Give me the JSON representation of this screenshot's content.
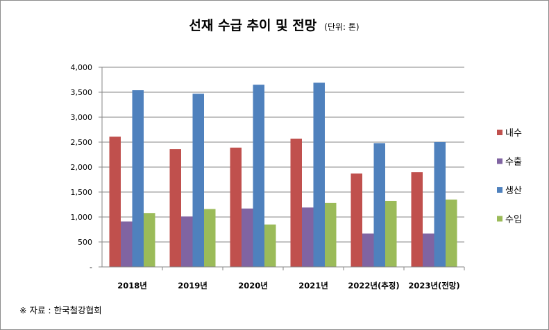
{
  "chart_data": {
    "type": "bar",
    "title": "선재 수급 추이 및 전망",
    "subtitle": "(단위: 톤)",
    "categories": [
      "2018년",
      "2019년",
      "2020년",
      "2021년",
      "2022년(추정)",
      "2023년(전망)"
    ],
    "series": [
      {
        "name": "내수",
        "color": "#c0504d",
        "values": [
          2610,
          2360,
          2390,
          2570,
          1870,
          1900
        ]
      },
      {
        "name": "수출",
        "color": "#8064a2",
        "values": [
          910,
          1010,
          1170,
          1190,
          670,
          670
        ]
      },
      {
        "name": "생산",
        "color": "#4f81bd",
        "values": [
          3540,
          3470,
          3650,
          3690,
          2480,
          2500
        ]
      },
      {
        "name": "수입",
        "color": "#9bbb59",
        "values": [
          1080,
          1160,
          850,
          1280,
          1320,
          1350
        ]
      }
    ],
    "ylim": [
      0,
      4000
    ],
    "yticks": [
      {
        "value": 0,
        "label": "-"
      },
      {
        "value": 500,
        "label": "500"
      },
      {
        "value": 1000,
        "label": "1,000"
      },
      {
        "value": 1500,
        "label": "1,500"
      },
      {
        "value": 2000,
        "label": "2,000"
      },
      {
        "value": 2500,
        "label": "2,500"
      },
      {
        "value": 3000,
        "label": "3,000"
      },
      {
        "value": 3500,
        "label": "3,500"
      },
      {
        "value": 4000,
        "label": "4,000"
      }
    ],
    "grid": true,
    "legend": "right"
  },
  "source_note": "※ 자료 : 한국철강협회"
}
